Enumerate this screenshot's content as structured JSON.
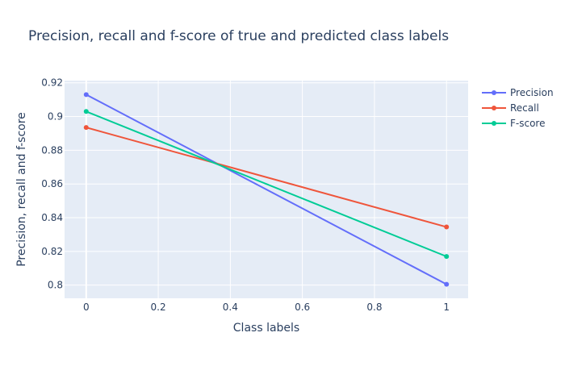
{
  "chart_data": {
    "type": "line",
    "title": "Precision, recall and f-score of true and predicted class labels",
    "xlabel": "Class labels",
    "ylabel": "Precision, recall and f-score",
    "x": [
      0,
      1
    ],
    "xlim": [
      -0.06,
      1.06
    ],
    "ylim": [
      0.7922,
      0.9213
    ],
    "xticks": [
      0,
      0.2,
      0.4,
      0.6,
      0.8,
      1
    ],
    "xtick_labels": [
      "0",
      "0.2",
      "0.4",
      "0.6",
      "0.8",
      "1"
    ],
    "yticks": [
      0.8,
      0.82,
      0.84,
      0.86,
      0.88,
      0.9,
      0.92
    ],
    "ytick_labels": [
      "0.8",
      "0.82",
      "0.84",
      "0.86",
      "0.88",
      "0.9",
      "0.92"
    ],
    "grid": true,
    "legend_position": "top-right",
    "series": [
      {
        "name": "Precision",
        "color": "#636efa",
        "values": [
          0.913,
          0.8005
        ]
      },
      {
        "name": "Recall",
        "color": "#ef553b",
        "values": [
          0.8935,
          0.8345
        ]
      },
      {
        "name": "F-score",
        "color": "#00cc96",
        "values": [
          0.903,
          0.817
        ]
      }
    ]
  }
}
